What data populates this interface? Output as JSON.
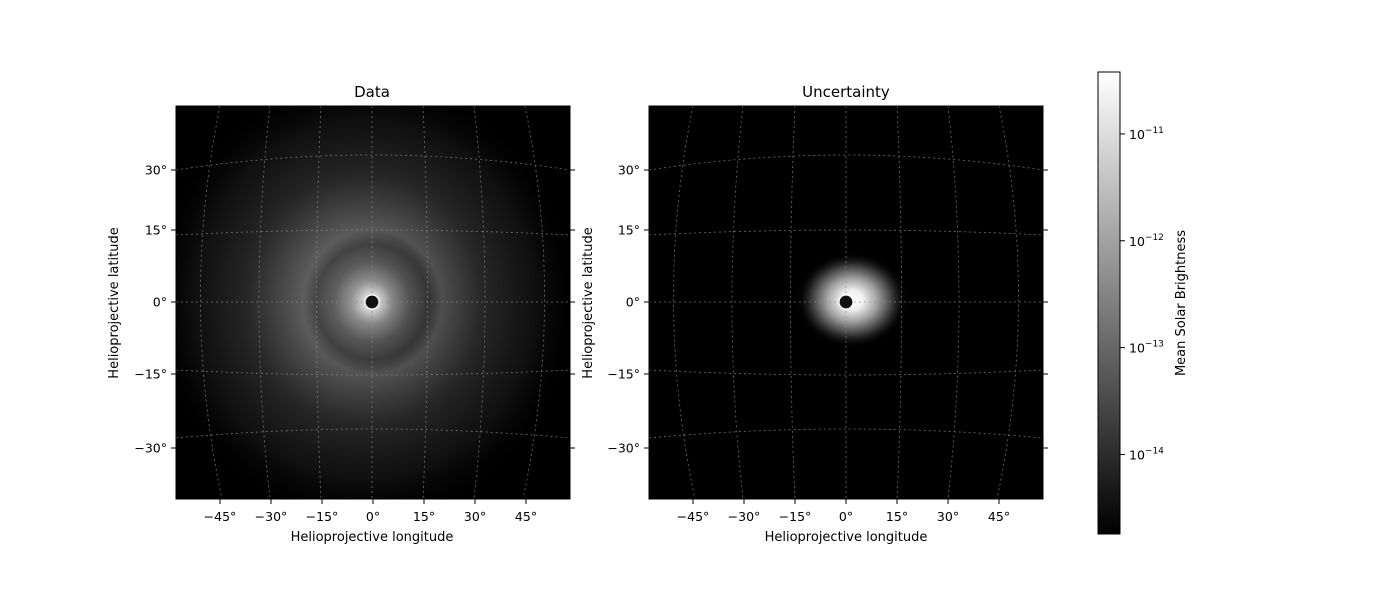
{
  "chart_data": [
    {
      "type": "heatmap",
      "title": "Data",
      "xlabel": "Helioprojective longitude",
      "ylabel": "Helioprojective latitude",
      "xticks": [
        "−45°",
        "−30°",
        "−15°",
        "0°",
        "15°",
        "30°",
        "45°"
      ],
      "yticks": [
        "30°",
        "15°",
        "0°",
        "−15°",
        "−30°"
      ],
      "xlim": [
        -59,
        59
      ],
      "ylim": [
        -41,
        41
      ],
      "colormap": "grayscale",
      "center_occulter": [
        0,
        0
      ],
      "brightness_peak_lon_lat": [
        0,
        0
      ],
      "grid": true
    },
    {
      "type": "heatmap",
      "title": "Uncertainty",
      "xlabel": "Helioprojective longitude",
      "ylabel": "Helioprojective latitude",
      "xticks": [
        "−45°",
        "−30°",
        "−15°",
        "0°",
        "15°",
        "30°",
        "45°"
      ],
      "yticks": [
        "30°",
        "15°",
        "0°",
        "−15°",
        "−30°"
      ],
      "xlim": [
        -59,
        59
      ],
      "ylim": [
        -41,
        41
      ],
      "colormap": "grayscale",
      "center_occulter": [
        0,
        0
      ],
      "brightness_peak_lon_lat": [
        0,
        0
      ],
      "grid": true
    }
  ],
  "colorbar": {
    "label": "Mean Solar Brightness",
    "scale": "log",
    "range": [
      1.8e-15,
      3.8e-11
    ],
    "colors": [
      "#000000",
      "#ffffff"
    ],
    "ticks": [
      {
        "value": 1e-14,
        "base": "10",
        "exp": "−14"
      },
      {
        "value": 1e-13,
        "base": "10",
        "exp": "−13"
      },
      {
        "value": 1e-12,
        "base": "10",
        "exp": "−12"
      },
      {
        "value": 1e-11,
        "base": "10",
        "exp": "−11"
      }
    ]
  }
}
